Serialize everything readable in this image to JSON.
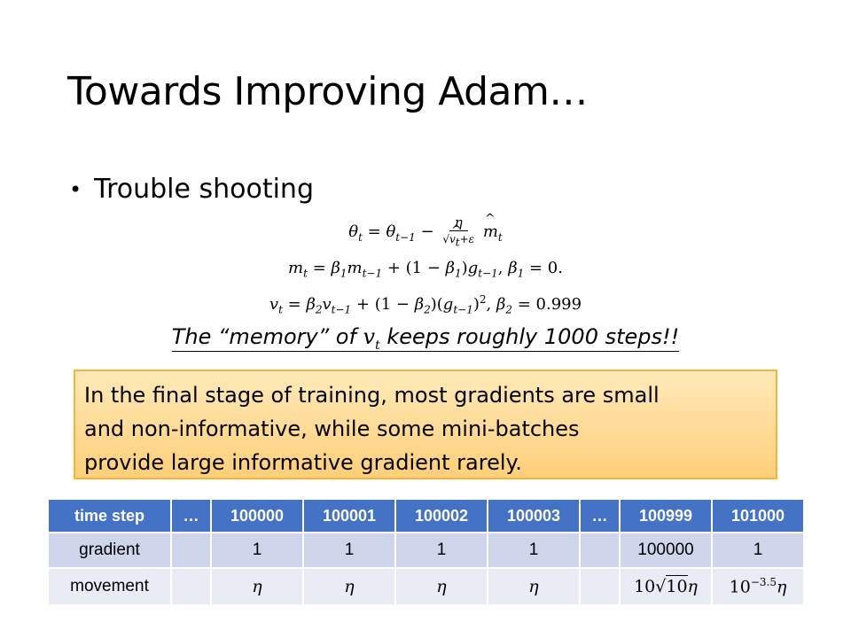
{
  "title": "Towards Improving Adam…",
  "bullet": "Trouble shooting",
  "memory_note": {
    "before": "The “memory” of ",
    "var": "v",
    "sub": "t",
    "after": " keeps roughly 1000 steps!!"
  },
  "equations": {
    "beta1_value": "0.",
    "beta2_value": "0.999"
  },
  "callout": {
    "lines": [
      "In the final stage of training, most gradients are small",
      "and non-informative, while some mini-batches",
      "provide large informative gradient rarely."
    ]
  },
  "table": {
    "header": [
      "time step",
      "…",
      "100000",
      "100001",
      "100002",
      "100003",
      "…",
      "100999",
      "101000"
    ],
    "gradient_row": [
      "gradient",
      "",
      "1",
      "1",
      "1",
      "1",
      "",
      "100000",
      "1"
    ],
    "movement_row": [
      "movement",
      "",
      "η",
      "η",
      "η",
      "η",
      "",
      "10√10η",
      "10^−3.5η"
    ],
    "movement_parts": {
      "eta": "η",
      "big_coef": "10",
      "big_root": "10",
      "small_base": "10",
      "small_exp": "−3.5"
    }
  },
  "colors": {
    "header_bg": "#4472c4",
    "row1_bg": "#cfd5ea",
    "row2_bg": "#e9ebf5",
    "callout_border": "#f4b43a",
    "callout_fill": "#ffcf7a"
  }
}
